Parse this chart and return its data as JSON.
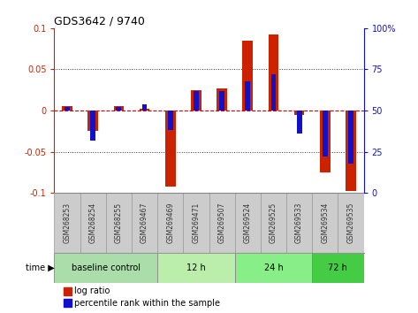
{
  "title": "GDS3642 / 9740",
  "samples": [
    "GSM268253",
    "GSM268254",
    "GSM268255",
    "GSM269467",
    "GSM269469",
    "GSM269471",
    "GSM269507",
    "GSM269524",
    "GSM269525",
    "GSM269533",
    "GSM269534",
    "GSM269535"
  ],
  "log_ratio": [
    0.005,
    -0.025,
    0.005,
    0.002,
    -0.092,
    0.025,
    0.027,
    0.085,
    0.092,
    -0.005,
    -0.075,
    -0.098
  ],
  "percentile_rank": [
    52,
    32,
    52,
    54,
    38,
    62,
    62,
    68,
    72,
    36,
    22,
    18
  ],
  "group_defs": [
    {
      "label": "baseline control",
      "start": 0,
      "end": 3,
      "color": "#aaddaa"
    },
    {
      "label": "12 h",
      "start": 4,
      "end": 6,
      "color": "#bbeeaa"
    },
    {
      "label": "24 h",
      "start": 7,
      "end": 9,
      "color": "#88ee88"
    },
    {
      "label": "72 h",
      "start": 10,
      "end": 11,
      "color": "#44cc44"
    }
  ],
  "ylim": [
    -0.1,
    0.1
  ],
  "yticks_left": [
    -0.1,
    -0.05,
    0.0,
    0.05,
    0.1
  ],
  "ytick_labels_left": [
    "-0.1",
    "-0.05",
    "0",
    "0.05",
    "0.1"
  ],
  "yticks_right": [
    -0.1,
    -0.05,
    0.0,
    0.05,
    0.1
  ],
  "ytick_labels_right": [
    "0",
    "25",
    "50",
    "75",
    "100%"
  ],
  "bar_color": "#cc2200",
  "pct_color": "#1111cc",
  "zero_line_color": "#cc0000",
  "dotted_line_color": "#333333",
  "sample_box_color": "#cccccc",
  "sample_box_edge": "#999999",
  "sample_text_color": "#333333"
}
